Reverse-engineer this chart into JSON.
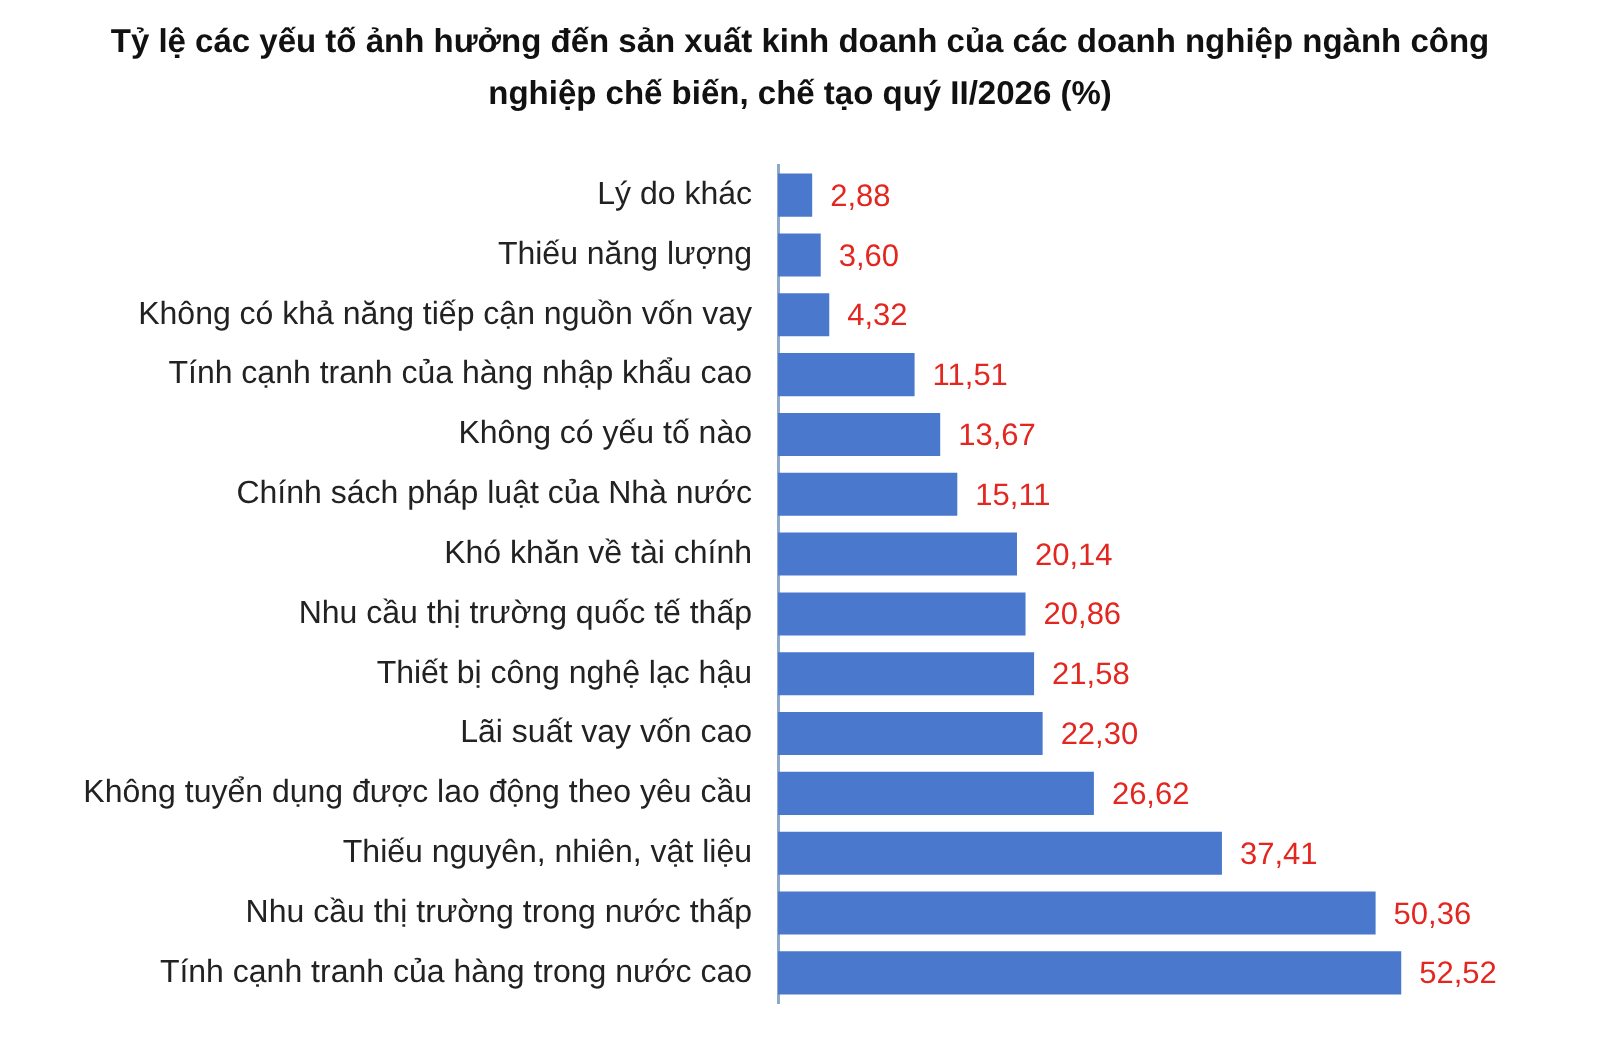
{
  "chart_data": {
    "type": "bar",
    "orientation": "horizontal",
    "title": "Tỷ lệ các yếu tố ảnh hưởng đến sản xuất kinh doanh của các doanh nghiệp ngành công nghiệp chế biến, chế tạo quý II/2026 (%)",
    "categories": [
      "Lý do khác",
      "Thiếu năng lượng",
      "Không có khả năng tiếp cận nguồn vốn vay",
      "Tính cạnh tranh của hàng nhập khẩu cao",
      "Không có yếu tố nào",
      "Chính sách pháp luật của Nhà nước",
      "Khó khăn về tài chính",
      "Nhu cầu thị trường quốc tế thấp",
      "Thiết bị công nghệ lạc hậu",
      "Lãi suất vay vốn cao",
      "Không tuyển dụng được lao động theo yêu cầu",
      "Thiếu nguyên, nhiên, vật liệu",
      "Nhu cầu thị trường trong nước thấp",
      "Tính cạnh tranh của hàng trong nước cao"
    ],
    "values": [
      2.88,
      3.6,
      4.32,
      11.51,
      13.67,
      15.11,
      20.14,
      20.86,
      21.58,
      22.3,
      26.62,
      37.41,
      50.36,
      52.52
    ],
    "value_labels": [
      "2,88",
      "3,60",
      "4,32",
      "11,51",
      "13,67",
      "15,11",
      "20,14",
      "20,86",
      "21,58",
      "22,30",
      "26,62",
      "37,41",
      "50,36",
      "52,52"
    ],
    "color": "#4a78cc",
    "tick_labels": "y",
    "grid": false
  }
}
